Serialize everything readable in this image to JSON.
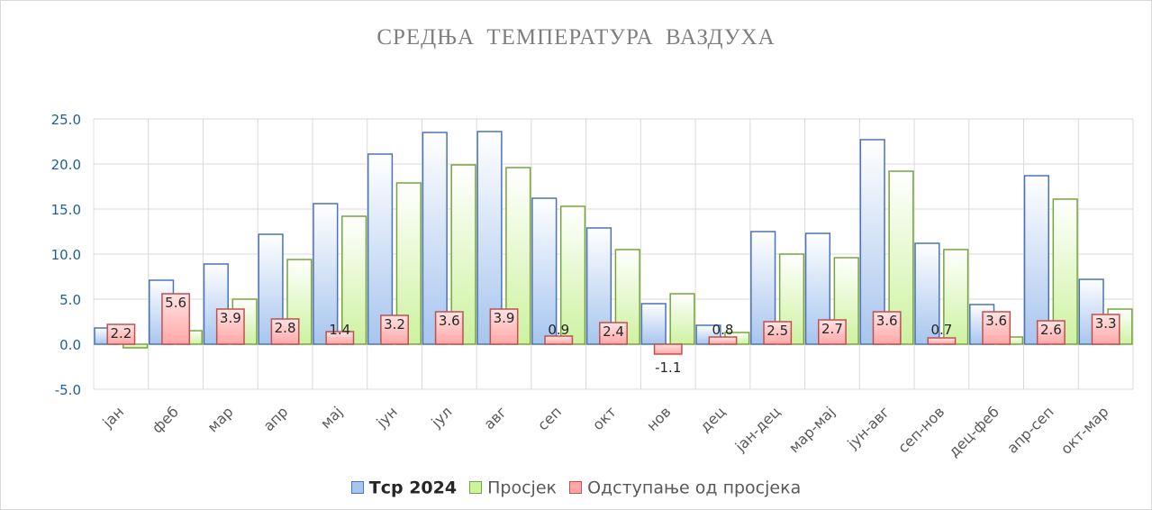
{
  "chart_data": {
    "type": "bar",
    "title": "СРЕДЊА ТЕМПЕРАТУРА ВАЗДУХА",
    "categories": [
      "јан",
      "феб",
      "мар",
      "апр",
      "мај",
      "јун",
      "јул",
      "авг",
      "сеп",
      "окт",
      "нов",
      "дец",
      "јан-дец",
      "мар-мај",
      "јун-авг",
      "сеп-нов",
      "дец-феб",
      "апр-сеп",
      "окт-мар"
    ],
    "ylim": [
      -5,
      25
    ],
    "yticks": [
      "-5.0",
      "0.0",
      "5.0",
      "10.0",
      "15.0",
      "20.0",
      "25.0"
    ],
    "grid": true,
    "legend_position": "bottom",
    "series": [
      {
        "name": "Tср 2024",
        "values": [
          1.8,
          7.1,
          8.9,
          12.2,
          15.6,
          21.1,
          23.5,
          23.6,
          16.2,
          12.9,
          4.5,
          2.1,
          12.5,
          12.3,
          22.7,
          11.2,
          4.4,
          18.7,
          7.2
        ]
      },
      {
        "name": "Просјек",
        "values": [
          -0.4,
          1.5,
          5.0,
          9.4,
          14.2,
          17.9,
          19.9,
          19.6,
          15.3,
          10.5,
          5.6,
          1.3,
          10.0,
          9.6,
          19.2,
          10.5,
          0.8,
          16.1,
          3.9
        ]
      },
      {
        "name": "Одступање од просјека",
        "values": [
          2.2,
          5.6,
          3.9,
          2.8,
          1.4,
          3.2,
          3.6,
          3.9,
          0.9,
          2.4,
          -1.1,
          0.8,
          2.5,
          2.7,
          3.6,
          0.7,
          3.6,
          2.6,
          3.3
        ]
      }
    ],
    "data_labels": [
      "2.2",
      "5.6",
      "3.9",
      "2.8",
      "1.4",
      "3.2",
      "3.6",
      "3.9",
      "0.9",
      "2.4",
      "-1.1",
      "0.8",
      "2.5",
      "2.7",
      "3.6",
      "0.7",
      "3.6",
      "2.6",
      "3.3"
    ],
    "colors": {
      "series1_fill_top": "#ffffff",
      "series1_fill_bottom": "#a7c5ee",
      "series1_stroke": "#4a73b8",
      "series2_fill_top": "#ffffff",
      "series2_fill_bottom": "#cdf2a0",
      "series2_stroke": "#77a53b",
      "series3_fill_top": "#ffe4e4",
      "series3_fill_bottom": "#ffa6a6",
      "series3_stroke": "#c0504d",
      "axis_text": "#1f5f97",
      "grid": "#d9d9d9"
    }
  }
}
